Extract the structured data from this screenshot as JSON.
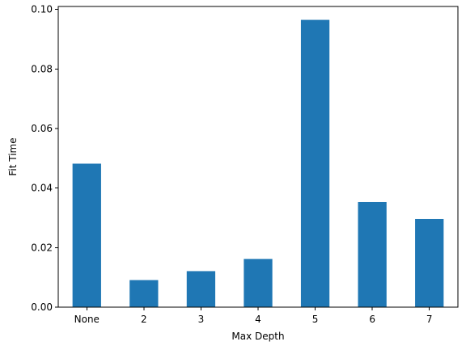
{
  "chart_data": {
    "type": "bar",
    "categories": [
      "None",
      "2",
      "3",
      "4",
      "5",
      "6",
      "7"
    ],
    "values": [
      0.0482,
      0.0091,
      0.0121,
      0.0162,
      0.0965,
      0.0353,
      0.0296
    ],
    "title": "",
    "xlabel": "Max Depth",
    "ylabel": "Fit Time",
    "ylim": [
      0,
      0.101
    ],
    "yticks": [
      0.0,
      0.02,
      0.04,
      0.06,
      0.08,
      0.1
    ],
    "ytick_labels": [
      "0.00",
      "0.02",
      "0.04",
      "0.06",
      "0.08",
      "0.10"
    ],
    "grid": false,
    "bar_color": "#1f77b4"
  }
}
